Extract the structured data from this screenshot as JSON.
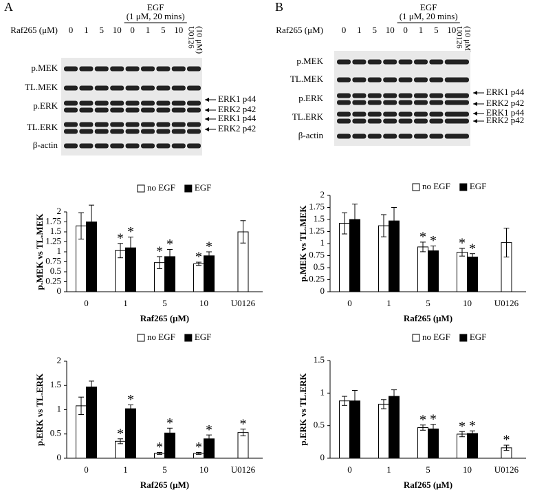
{
  "blots": [
    {
      "panel": "A",
      "treatment": "EGF",
      "treatment_detail": "(1 μM, 20 mins)",
      "lane_title": "Raf265 (μM)",
      "lanes": [
        "0",
        "1",
        "5",
        "10",
        "0",
        "1",
        "5",
        "10"
      ],
      "inhibitor": "U0126",
      "inhibitor_dose": "(10 μM)",
      "rows": [
        "p.MEK",
        "TL.MEK",
        "p.ERK",
        "TL.ERK",
        "β-actin"
      ],
      "bands": [
        "ERK1 p44",
        "ERK2 p42",
        "ERK1 p44",
        "ERK2 p42"
      ]
    },
    {
      "panel": "B",
      "treatment": "EGF",
      "treatment_detail": "(1 μM, 20 mins)",
      "lane_title": "Raf265 (μM)",
      "lanes": [
        "0",
        "1",
        "5",
        "10",
        "0",
        "1",
        "5",
        "10"
      ],
      "inhibitor": "U0126",
      "inhibitor_dose": "(10 μM)",
      "rows": [
        "p.MEK",
        "TL.MEK",
        "p.ERK",
        "TL.ERK",
        "β-actin"
      ],
      "bands": [
        "ERK1 p44",
        "ERK2 p42",
        "ERK1 p44",
        "ERK2 p42"
      ]
    }
  ],
  "chart_data": [
    {
      "type": "bar",
      "x_label": "Raf265 (μM)",
      "y_label": "p.MEK vs TL.MEK",
      "categories": [
        "0",
        "1",
        "5",
        "10",
        "U0126"
      ],
      "ylim": [
        0,
        2
      ],
      "yticks": [
        0,
        0.25,
        0.5,
        0.75,
        1,
        1.25,
        1.5,
        1.75,
        2
      ],
      "legend": "top",
      "series": [
        {
          "name": "no EGF",
          "color": "#ffffff",
          "values": [
            1.65,
            1.03,
            0.73,
            0.7,
            1.5
          ],
          "errors": [
            0.33,
            0.18,
            0.15,
            0.04,
            0.28
          ],
          "significance": [
            null,
            "*",
            "*",
            "*",
            null
          ]
        },
        {
          "name": "EGF",
          "color": "#000000",
          "values": [
            1.75,
            1.1,
            0.88,
            0.9,
            null
          ],
          "errors": [
            0.42,
            0.27,
            0.18,
            0.1,
            null
          ],
          "significance": [
            null,
            "*",
            "*",
            "*",
            null
          ]
        }
      ]
    },
    {
      "type": "bar",
      "x_label": "Raf265 (μM)",
      "y_label": "p.ERK vs TL.ERK",
      "categories": [
        "0",
        "1",
        "5",
        "10",
        "U0126"
      ],
      "ylim": [
        0,
        2
      ],
      "yticks": [
        0,
        0.5,
        1,
        1.5,
        2
      ],
      "legend": "top",
      "series": [
        {
          "name": "no EGF",
          "color": "#ffffff",
          "values": [
            1.08,
            0.35,
            0.1,
            0.1,
            0.53
          ],
          "errors": [
            0.18,
            0.05,
            0.02,
            0.02,
            0.07
          ],
          "significance": [
            null,
            "*",
            "*",
            "*",
            "*"
          ]
        },
        {
          "name": "EGF",
          "color": "#000000",
          "values": [
            1.47,
            1.02,
            0.52,
            0.4,
            null
          ],
          "errors": [
            0.12,
            0.08,
            0.1,
            0.08,
            null
          ],
          "significance": [
            null,
            "*",
            "*",
            "*",
            null
          ]
        }
      ]
    },
    {
      "type": "bar",
      "x_label": "Raf265 (μM)",
      "y_label": "p.MEK vs TL.MEK",
      "categories": [
        "0",
        "1",
        "5",
        "10",
        "U0126"
      ],
      "ylim": [
        0,
        2
      ],
      "yticks": [
        0,
        0.25,
        0.5,
        0.75,
        1,
        1.25,
        1.5,
        1.75,
        2
      ],
      "legend": "top",
      "series": [
        {
          "name": "no EGF",
          "color": "#ffffff",
          "values": [
            1.42,
            1.37,
            0.93,
            0.82,
            1.02
          ],
          "errors": [
            0.22,
            0.23,
            0.1,
            0.08,
            0.3
          ],
          "significance": [
            null,
            null,
            "*",
            "*",
            null
          ]
        },
        {
          "name": "EGF",
          "color": "#000000",
          "values": [
            1.5,
            1.47,
            0.85,
            0.72,
            null
          ],
          "errors": [
            0.32,
            0.28,
            0.1,
            0.07,
            null
          ],
          "significance": [
            null,
            null,
            "*",
            "*",
            null
          ]
        }
      ]
    },
    {
      "type": "bar",
      "x_label": "Raf265 (μM)",
      "y_label": "p.ERK vs TL.ERK",
      "categories": [
        "0",
        "1",
        "5",
        "10",
        "U0126"
      ],
      "ylim": [
        0,
        1.5
      ],
      "yticks": [
        0,
        0.5,
        1,
        1.5
      ],
      "legend": "top",
      "series": [
        {
          "name": "no EGF",
          "color": "#ffffff",
          "values": [
            0.88,
            0.83,
            0.47,
            0.37,
            0.16
          ],
          "errors": [
            0.07,
            0.07,
            0.04,
            0.04,
            0.04
          ],
          "significance": [
            null,
            null,
            "*",
            "*",
            "*"
          ]
        },
        {
          "name": "EGF",
          "color": "#000000",
          "values": [
            0.88,
            0.95,
            0.45,
            0.38,
            null
          ],
          "errors": [
            0.16,
            0.1,
            0.07,
            0.04,
            null
          ],
          "significance": [
            null,
            null,
            "*",
            "*",
            null
          ]
        }
      ]
    }
  ]
}
